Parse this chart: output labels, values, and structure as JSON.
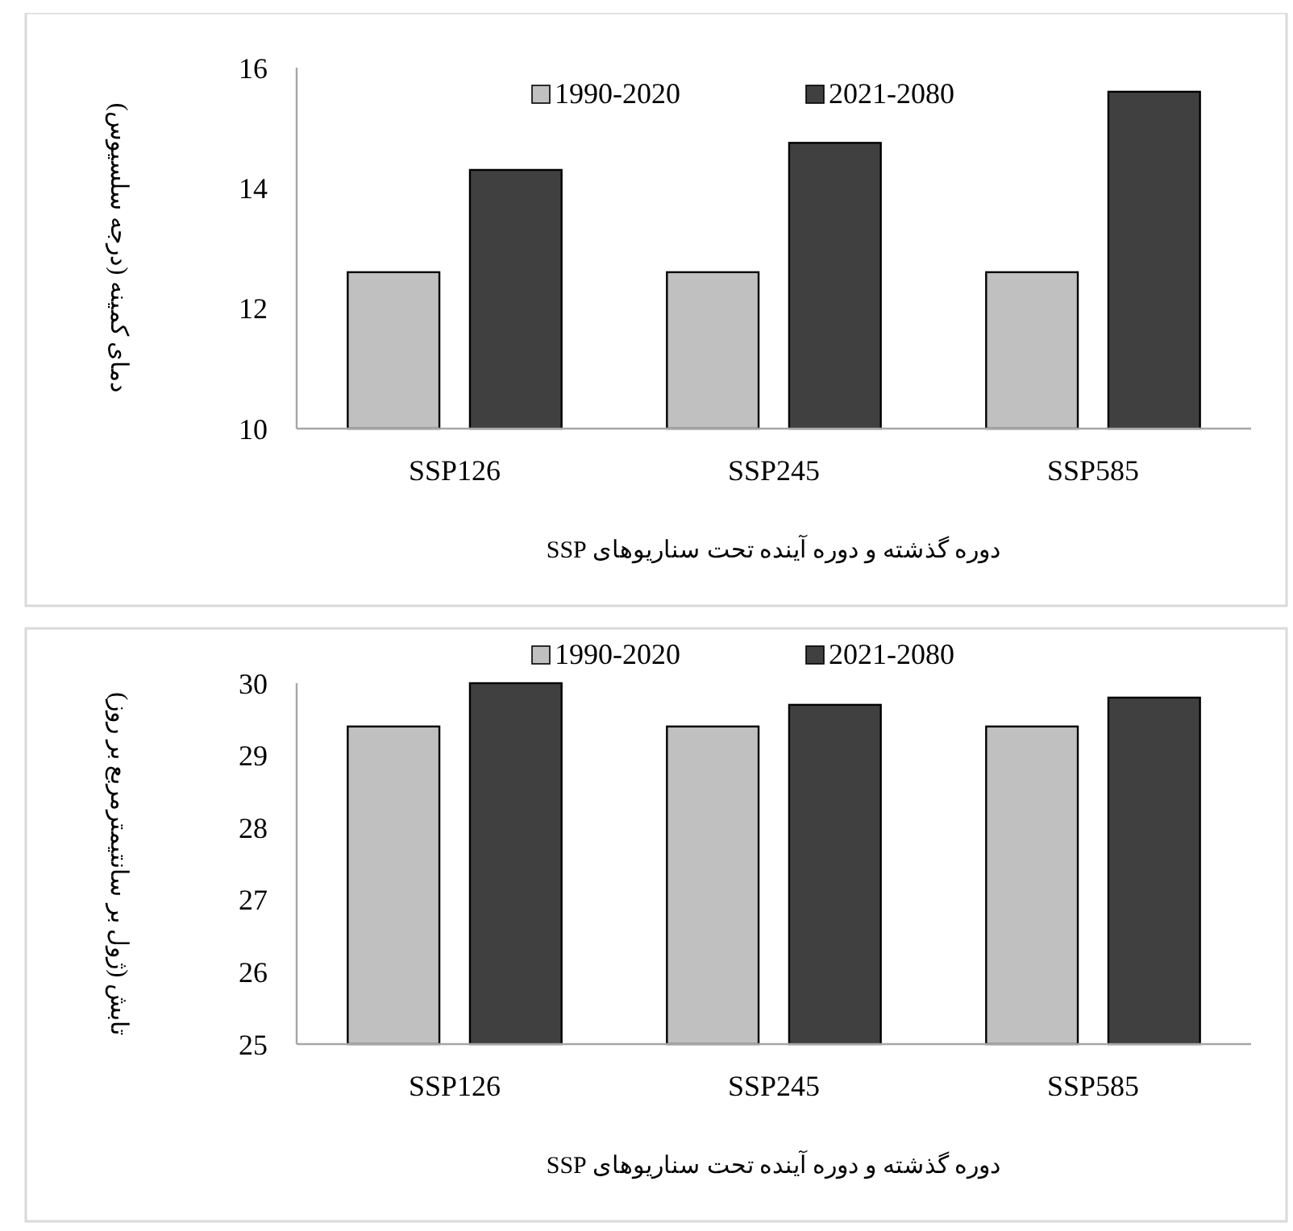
{
  "chart_data": [
    {
      "type": "bar",
      "categories": [
        "SSP126",
        "SSP245",
        "SSP585"
      ],
      "xlabel": "دوره گذشته و دوره آینده تحت سناریوهای SSP",
      "ylabel": "دمای کمینه (درجه سلسیوس)",
      "ylim": [
        10,
        16
      ],
      "yticks": [
        10,
        12,
        14,
        16
      ],
      "grid": false,
      "legend": "top",
      "series": [
        {
          "name": "1990-2020",
          "color": "#c0c0c0",
          "values": [
            12.6,
            12.6,
            12.6
          ]
        },
        {
          "name": "2021-2080",
          "color": "#404040",
          "values": [
            14.3,
            14.75,
            15.6
          ]
        }
      ]
    },
    {
      "type": "bar",
      "categories": [
        "SSP126",
        "SSP245",
        "SSP585"
      ],
      "xlabel": "دوره گذشته و دوره آینده تحت سناریوهای SSP",
      "ylabel": "تابش (ژول بر سانتیمترمربع بر روز)",
      "ylim": [
        25,
        30
      ],
      "yticks": [
        25,
        26,
        27,
        28,
        29,
        30
      ],
      "grid": false,
      "legend": "top",
      "series": [
        {
          "name": "1990-2020",
          "color": "#c0c0c0",
          "values": [
            29.4,
            29.4,
            29.4
          ]
        },
        {
          "name": "2021-2080",
          "color": "#404040",
          "values": [
            30.0,
            29.7,
            29.8
          ]
        }
      ]
    }
  ]
}
